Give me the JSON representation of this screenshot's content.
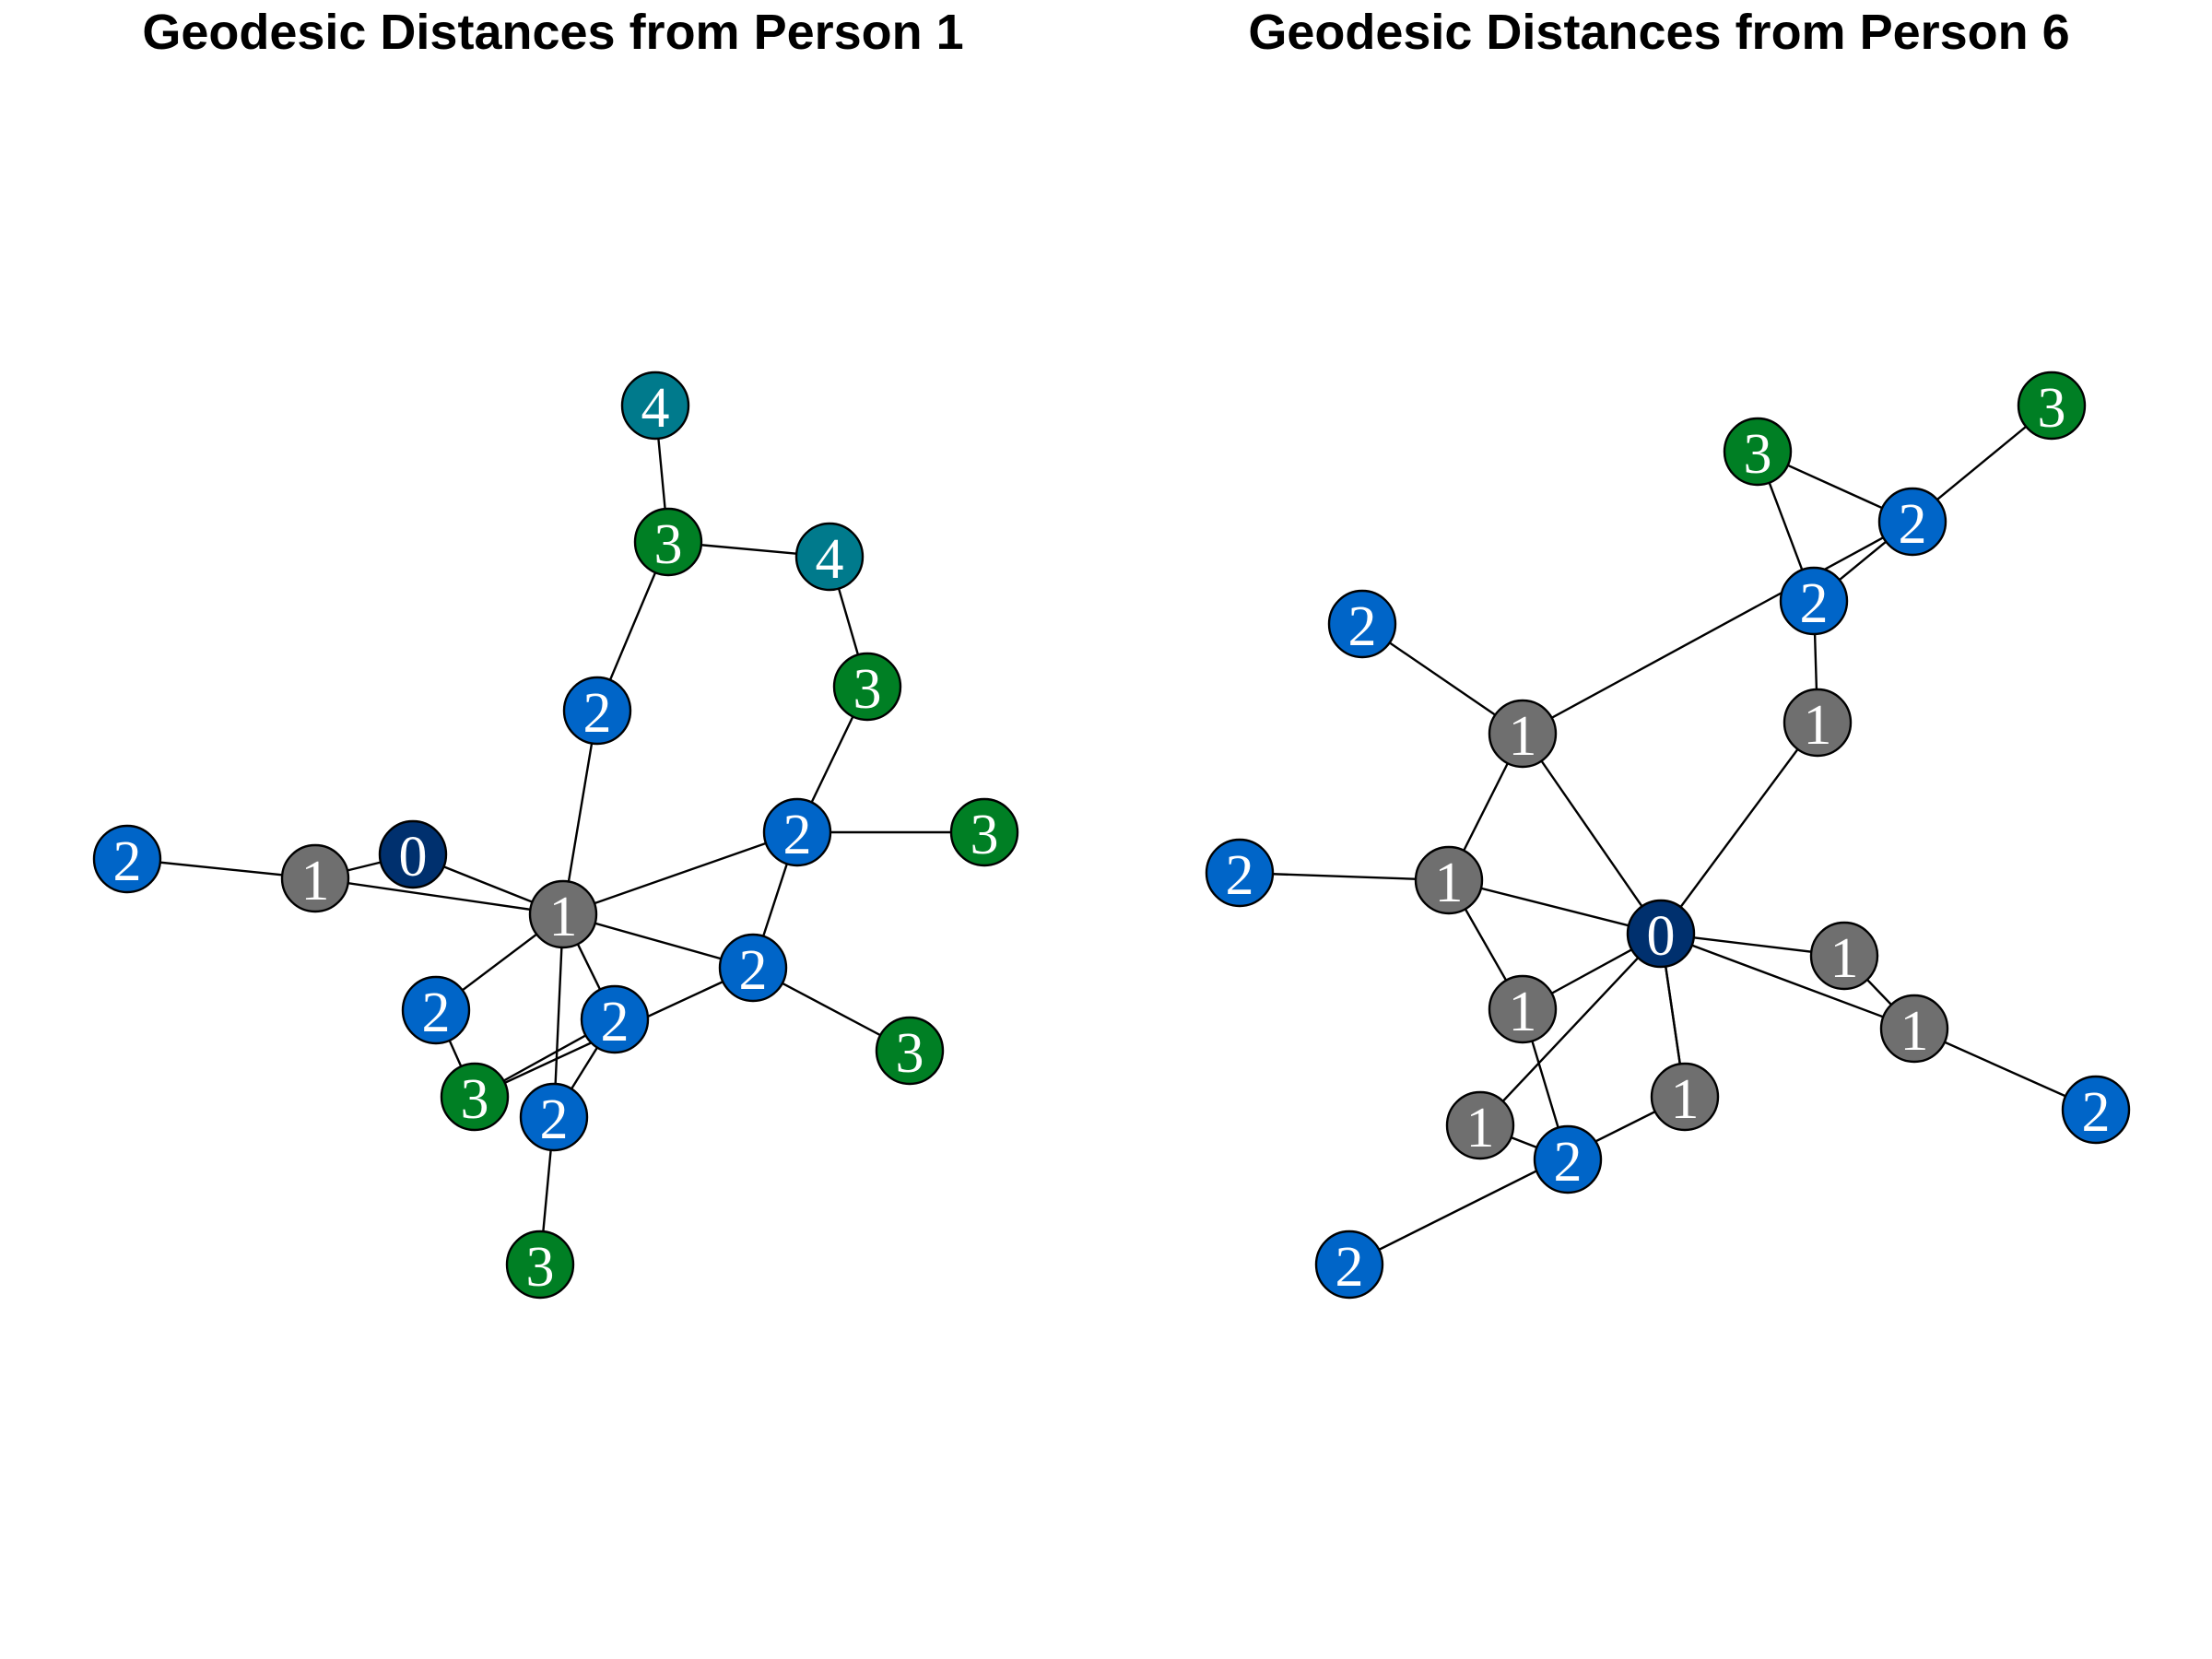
{
  "colors": {
    "0": "#00306e",
    "1": "#6f6f6f",
    "2": "#0065c8",
    "3": "#007f24",
    "4": "#007a8c"
  },
  "panels": [
    {
      "title": "Geodesic Distances from Person 1",
      "nodes": [
        {
          "label": "4"
        },
        {
          "label": "3"
        },
        {
          "label": "4"
        },
        {
          "label": "3"
        },
        {
          "label": "2"
        },
        {
          "label": "2"
        },
        {
          "label": "3"
        },
        {
          "label": "2"
        },
        {
          "label": "1"
        },
        {
          "label": "0"
        },
        {
          "label": "1"
        },
        {
          "label": "2"
        },
        {
          "label": "2"
        },
        {
          "label": "3"
        },
        {
          "label": "2"
        },
        {
          "label": "3"
        },
        {
          "label": "2"
        },
        {
          "label": "3"
        }
      ],
      "edges": [
        [
          0,
          1
        ],
        [
          1,
          2
        ],
        [
          2,
          3
        ],
        [
          1,
          4
        ],
        [
          3,
          5
        ],
        [
          5,
          6
        ],
        [
          7,
          8
        ],
        [
          8,
          9
        ],
        [
          8,
          10
        ],
        [
          9,
          10
        ],
        [
          4,
          10
        ],
        [
          5,
          10
        ],
        [
          10,
          11
        ],
        [
          10,
          12
        ],
        [
          10,
          14
        ],
        [
          10,
          16
        ],
        [
          5,
          11
        ],
        [
          11,
          15
        ],
        [
          12,
          13
        ],
        [
          13,
          14
        ],
        [
          11,
          13
        ],
        [
          16,
          17
        ],
        [
          14,
          16
        ]
      ]
    },
    {
      "title": "Geodesic Distances from Person 6",
      "nodes": [
        {
          "label": "3"
        },
        {
          "label": "3"
        },
        {
          "label": "2"
        },
        {
          "label": "2"
        },
        {
          "label": "2"
        },
        {
          "label": "1"
        },
        {
          "label": "1"
        },
        {
          "label": "2"
        },
        {
          "label": "1"
        },
        {
          "label": "0"
        },
        {
          "label": "1"
        },
        {
          "label": "1"
        },
        {
          "label": "1"
        },
        {
          "label": "1"
        },
        {
          "label": "1"
        },
        {
          "label": "2"
        },
        {
          "label": "2"
        },
        {
          "label": "2"
        }
      ],
      "edges": [
        [
          2,
          1
        ],
        [
          1,
          3
        ],
        [
          3,
          0
        ],
        [
          2,
          5
        ],
        [
          4,
          5
        ],
        [
          5,
          8
        ],
        [
          5,
          9
        ],
        [
          3,
          6
        ],
        [
          6,
          9
        ],
        [
          7,
          8
        ],
        [
          8,
          9
        ],
        [
          8,
          11
        ],
        [
          11,
          9
        ],
        [
          9,
          10
        ],
        [
          9,
          12
        ],
        [
          9,
          13
        ],
        [
          9,
          14
        ],
        [
          10,
          12
        ],
        [
          12,
          17
        ],
        [
          11,
          16
        ],
        [
          14,
          16
        ],
        [
          13,
          15
        ],
        [
          13,
          9
        ]
      ]
    }
  ]
}
